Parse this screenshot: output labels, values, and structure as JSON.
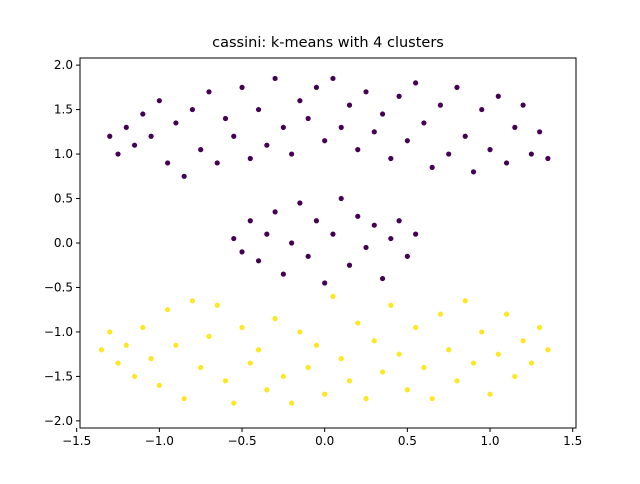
{
  "chart_data": {
    "type": "scatter",
    "title": "cassini: k-means with 4 clusters",
    "xlabel": "",
    "ylabel": "",
    "xlim": [
      -1.48,
      1.52
    ],
    "ylim": [
      -2.08,
      2.08
    ],
    "xticks": [
      -1.5,
      -1.0,
      -0.5,
      0.0,
      0.5,
      1.0,
      1.5
    ],
    "xtick_labels": [
      "−1.5",
      "−1.0",
      "−0.5",
      "0.0",
      "0.5",
      "1.0",
      "1.5"
    ],
    "yticks": [
      -2.0,
      -1.5,
      -1.0,
      -0.5,
      0.0,
      0.5,
      1.0,
      1.5,
      2.0
    ],
    "ytick_labels": [
      "−2.0",
      "−1.5",
      "−1.0",
      "−0.5",
      "0.0",
      "0.5",
      "1.0",
      "1.5",
      "2.0"
    ],
    "grid": false,
    "legend": "none",
    "colors": {
      "cluster_purple": "#440154",
      "cluster_yellow": "#fde725"
    },
    "series": [
      {
        "color": "#440154",
        "points": [
          [
            -1.3,
            1.2
          ],
          [
            -1.25,
            1.0
          ],
          [
            -1.2,
            1.3
          ],
          [
            -1.15,
            1.1
          ],
          [
            -1.1,
            1.45
          ],
          [
            -1.05,
            1.2
          ],
          [
            -1.0,
            1.6
          ],
          [
            -0.95,
            0.9
          ],
          [
            -0.9,
            1.35
          ],
          [
            -0.85,
            0.75
          ],
          [
            -0.8,
            1.5
          ],
          [
            -0.75,
            1.05
          ],
          [
            -0.7,
            1.7
          ],
          [
            -0.65,
            0.9
          ],
          [
            -0.6,
            1.4
          ],
          [
            -0.55,
            1.2
          ],
          [
            -0.5,
            1.75
          ],
          [
            -0.45,
            0.95
          ],
          [
            -0.4,
            1.5
          ],
          [
            -0.35,
            1.1
          ],
          [
            -0.3,
            1.85
          ],
          [
            -0.25,
            1.3
          ],
          [
            -0.2,
            1.0
          ],
          [
            -0.15,
            1.6
          ],
          [
            -0.1,
            1.4
          ],
          [
            -0.05,
            1.75
          ],
          [
            0.0,
            1.15
          ],
          [
            0.05,
            1.85
          ],
          [
            0.1,
            1.3
          ],
          [
            0.15,
            1.55
          ],
          [
            0.2,
            1.05
          ],
          [
            0.25,
            1.7
          ],
          [
            0.3,
            1.25
          ],
          [
            0.35,
            1.45
          ],
          [
            0.4,
            0.95
          ],
          [
            0.45,
            1.65
          ],
          [
            0.5,
            1.15
          ],
          [
            0.55,
            1.8
          ],
          [
            0.6,
            1.35
          ],
          [
            0.65,
            0.85
          ],
          [
            0.7,
            1.55
          ],
          [
            0.75,
            1.0
          ],
          [
            0.8,
            1.75
          ],
          [
            0.85,
            1.2
          ],
          [
            0.9,
            0.8
          ],
          [
            0.95,
            1.5
          ],
          [
            1.0,
            1.05
          ],
          [
            1.05,
            1.65
          ],
          [
            1.1,
            0.9
          ],
          [
            1.15,
            1.3
          ],
          [
            1.2,
            1.55
          ],
          [
            1.25,
            1.0
          ],
          [
            1.3,
            1.25
          ],
          [
            1.35,
            0.95
          ],
          [
            -0.55,
            0.05
          ],
          [
            -0.5,
            -0.1
          ],
          [
            -0.45,
            0.25
          ],
          [
            -0.4,
            -0.2
          ],
          [
            -0.35,
            0.1
          ],
          [
            -0.3,
            0.35
          ],
          [
            -0.25,
            -0.35
          ],
          [
            -0.2,
            0.0
          ],
          [
            -0.15,
            0.45
          ],
          [
            -0.1,
            -0.15
          ],
          [
            -0.05,
            0.25
          ],
          [
            0.0,
            -0.45
          ],
          [
            0.05,
            0.1
          ],
          [
            0.1,
            0.5
          ],
          [
            0.15,
            -0.25
          ],
          [
            0.2,
            0.3
          ],
          [
            0.25,
            -0.05
          ],
          [
            0.3,
            0.2
          ],
          [
            0.35,
            -0.4
          ],
          [
            0.4,
            0.05
          ],
          [
            0.45,
            0.25
          ],
          [
            0.5,
            -0.15
          ],
          [
            0.55,
            0.1
          ]
        ]
      },
      {
        "color": "#fde725",
        "points": [
          [
            -1.35,
            -1.2
          ],
          [
            -1.3,
            -1.0
          ],
          [
            -1.25,
            -1.35
          ],
          [
            -1.2,
            -1.15
          ],
          [
            -1.15,
            -1.5
          ],
          [
            -1.1,
            -0.95
          ],
          [
            -1.05,
            -1.3
          ],
          [
            -1.0,
            -1.6
          ],
          [
            -0.95,
            -0.75
          ],
          [
            -0.9,
            -1.15
          ],
          [
            -0.85,
            -1.75
          ],
          [
            -0.8,
            -0.65
          ],
          [
            -0.75,
            -1.4
          ],
          [
            -0.7,
            -1.05
          ],
          [
            -0.65,
            -0.7
          ],
          [
            -0.6,
            -1.55
          ],
          [
            -0.55,
            -1.8
          ],
          [
            -0.5,
            -0.95
          ],
          [
            -0.45,
            -1.35
          ],
          [
            -0.4,
            -1.2
          ],
          [
            -0.35,
            -1.65
          ],
          [
            -0.3,
            -0.85
          ],
          [
            -0.25,
            -1.5
          ],
          [
            -0.2,
            -1.8
          ],
          [
            -0.15,
            -1.0
          ],
          [
            -0.1,
            -1.4
          ],
          [
            -0.05,
            -1.15
          ],
          [
            0.0,
            -1.7
          ],
          [
            0.05,
            -0.6
          ],
          [
            0.1,
            -1.3
          ],
          [
            0.15,
            -1.55
          ],
          [
            0.2,
            -0.9
          ],
          [
            0.25,
            -1.75
          ],
          [
            0.3,
            -1.1
          ],
          [
            0.35,
            -1.45
          ],
          [
            0.4,
            -0.7
          ],
          [
            0.45,
            -1.25
          ],
          [
            0.5,
            -1.65
          ],
          [
            0.55,
            -0.95
          ],
          [
            0.6,
            -1.4
          ],
          [
            0.65,
            -1.75
          ],
          [
            0.7,
            -0.8
          ],
          [
            0.75,
            -1.2
          ],
          [
            0.8,
            -1.55
          ],
          [
            0.85,
            -0.65
          ],
          [
            0.9,
            -1.35
          ],
          [
            0.95,
            -1.0
          ],
          [
            1.0,
            -1.7
          ],
          [
            1.05,
            -1.25
          ],
          [
            1.1,
            -0.8
          ],
          [
            1.15,
            -1.5
          ],
          [
            1.2,
            -1.1
          ],
          [
            1.25,
            -1.35
          ],
          [
            1.3,
            -0.95
          ],
          [
            1.35,
            -1.2
          ]
        ]
      }
    ]
  }
}
